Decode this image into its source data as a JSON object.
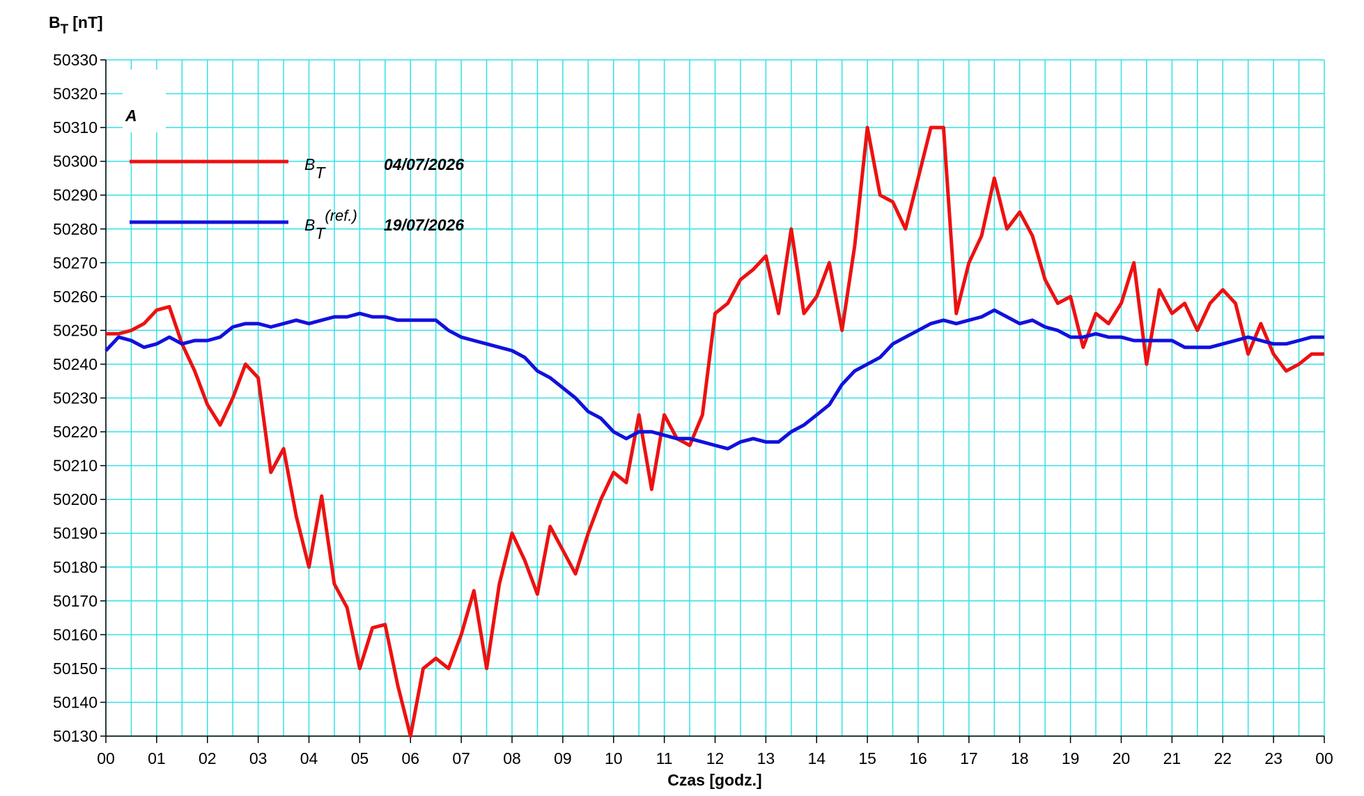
{
  "chart_data": {
    "type": "line",
    "annotation": "A",
    "ylabel": {
      "symbol": "B",
      "subscript": "T",
      "unit": "[nT]"
    },
    "xlabel": "Czas [godz.]",
    "grid": true,
    "xlim": [
      0,
      24
    ],
    "ylim": [
      50130,
      50330
    ],
    "yticks": [
      50130,
      50140,
      50150,
      50160,
      50170,
      50180,
      50190,
      50200,
      50210,
      50220,
      50230,
      50240,
      50250,
      50260,
      50270,
      50280,
      50290,
      50300,
      50310,
      50320,
      50330
    ],
    "xticks": [
      {
        "value": 0,
        "label": "00"
      },
      {
        "value": 1,
        "label": "01"
      },
      {
        "value": 2,
        "label": "02"
      },
      {
        "value": 3,
        "label": "03"
      },
      {
        "value": 4,
        "label": "04"
      },
      {
        "value": 5,
        "label": "05"
      },
      {
        "value": 6,
        "label": "06"
      },
      {
        "value": 7,
        "label": "07"
      },
      {
        "value": 8,
        "label": "08"
      },
      {
        "value": 9,
        "label": "09"
      },
      {
        "value": 10,
        "label": "10"
      },
      {
        "value": 11,
        "label": "11"
      },
      {
        "value": 12,
        "label": "12"
      },
      {
        "value": 13,
        "label": "13"
      },
      {
        "value": 14,
        "label": "14"
      },
      {
        "value": 15,
        "label": "15"
      },
      {
        "value": 16,
        "label": "16"
      },
      {
        "value": 17,
        "label": "17"
      },
      {
        "value": 18,
        "label": "18"
      },
      {
        "value": 19,
        "label": "19"
      },
      {
        "value": 20,
        "label": "20"
      },
      {
        "value": 21,
        "label": "21"
      },
      {
        "value": 22,
        "label": "22"
      },
      {
        "value": 23,
        "label": "23"
      },
      {
        "value": 24,
        "label": "00"
      }
    ],
    "minor_xgrid": [
      0.5,
      1.5,
      2.5,
      3.5,
      4.5,
      5.5,
      6.5,
      7.5,
      8.5,
      9.5,
      10.5,
      11.5,
      12.5,
      13.5,
      14.5,
      15.5,
      16.5,
      17.5,
      18.5,
      19.5,
      20.5,
      21.5,
      22.5,
      23.5
    ],
    "x": [
      0,
      0.25,
      0.5,
      0.75,
      1,
      1.25,
      1.5,
      1.75,
      2,
      2.25,
      2.5,
      2.75,
      3,
      3.25,
      3.5,
      3.75,
      4,
      4.25,
      4.5,
      4.75,
      5,
      5.25,
      5.5,
      5.75,
      6,
      6.25,
      6.5,
      6.75,
      7,
      7.25,
      7.5,
      7.75,
      8,
      8.25,
      8.5,
      8.75,
      9,
      9.25,
      9.5,
      9.75,
      10,
      10.25,
      10.5,
      10.75,
      11,
      11.25,
      11.5,
      11.75,
      12,
      12.25,
      12.5,
      12.75,
      13,
      13.25,
      13.5,
      13.75,
      14,
      14.25,
      14.5,
      14.75,
      15,
      15.25,
      15.5,
      15.75,
      16,
      16.25,
      16.5,
      16.75,
      17,
      17.25,
      17.5,
      17.75,
      18,
      18.25,
      18.5,
      18.75,
      19,
      19.25,
      19.5,
      19.75,
      20,
      20.25,
      20.5,
      20.75,
      21,
      21.25,
      21.5,
      21.75,
      22,
      22.25,
      22.5,
      22.75,
      23,
      23.25,
      23.5,
      23.75,
      24
    ],
    "series": [
      {
        "name": "B",
        "name_subscript": "T",
        "date": "04/07/2026",
        "color": "#ee1111",
        "values": [
          50249,
          50249,
          50250,
          50252,
          50256,
          50257,
          50246,
          50238,
          50228,
          50222,
          50230,
          50240,
          50236,
          50208,
          50215,
          50195,
          50180,
          50201,
          50175,
          50168,
          50150,
          50162,
          50163,
          50145,
          50130,
          50150,
          50153,
          50150,
          50160,
          50173,
          50150,
          50175,
          50190,
          50182,
          50172,
          50192,
          50185,
          50178,
          50190,
          50200,
          50208,
          50205,
          50225,
          50203,
          50225,
          50218,
          50216,
          50225,
          50255,
          50258,
          50265,
          50268,
          50272,
          50255,
          50280,
          50255,
          50260,
          50270,
          50250,
          50275,
          50310,
          50290,
          50288,
          50280,
          50295,
          50310,
          50310,
          50255,
          50270,
          50278,
          50295,
          50280,
          50285,
          50278,
          50265,
          50258,
          50260,
          50245,
          50255,
          50252,
          50258,
          50270,
          50240,
          50262,
          50255,
          50258,
          50250,
          50258,
          50262,
          50258,
          50243,
          50252,
          50243,
          50238,
          50240,
          50243,
          50243
        ]
      },
      {
        "name": "B",
        "name_subscript": "T",
        "name_superscript": "(ref.)",
        "date": "19/07/2026",
        "color": "#1111dd",
        "values": [
          50244,
          50248,
          50247,
          50245,
          50246,
          50248,
          50246,
          50247,
          50247,
          50248,
          50251,
          50252,
          50252,
          50251,
          50252,
          50253,
          50252,
          50253,
          50254,
          50254,
          50255,
          50254,
          50254,
          50253,
          50253,
          50253,
          50253,
          50250,
          50248,
          50247,
          50246,
          50245,
          50244,
          50242,
          50238,
          50236,
          50233,
          50230,
          50226,
          50224,
          50220,
          50218,
          50220,
          50220,
          50219,
          50218,
          50218,
          50217,
          50216,
          50215,
          50217,
          50218,
          50217,
          50217,
          50220,
          50222,
          50225,
          50228,
          50234,
          50238,
          50240,
          50242,
          50246,
          50248,
          50250,
          50252,
          50253,
          50252,
          50253,
          50254,
          50256,
          50254,
          50252,
          50253,
          50251,
          50250,
          50248,
          50248,
          50249,
          50248,
          50248,
          50247,
          50247,
          50247,
          50247,
          50245,
          50245,
          50245,
          50246,
          50247,
          50248,
          50247,
          50246,
          50246,
          50247,
          50248,
          50248
        ]
      }
    ]
  }
}
